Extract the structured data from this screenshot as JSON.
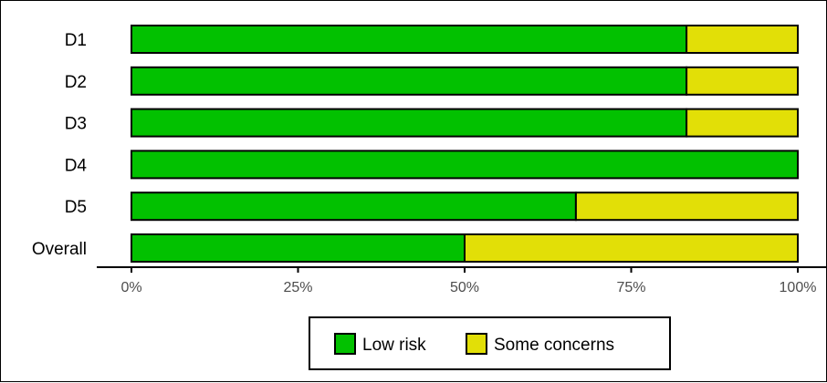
{
  "chart_data": {
    "type": "bar",
    "orientation": "horizontal",
    "stacked": true,
    "categories": [
      "D1",
      "D2",
      "D3",
      "D4",
      "D5",
      "Overall"
    ],
    "series": [
      {
        "name": "Low risk",
        "color": "#02C100",
        "values": [
          83.3,
          83.3,
          83.3,
          100,
          66.7,
          50
        ]
      },
      {
        "name": "Some concerns",
        "color": "#E2DF07",
        "values": [
          16.7,
          16.7,
          16.7,
          0,
          33.3,
          50
        ]
      }
    ],
    "xlim": [
      0,
      100
    ],
    "xticks": [
      0,
      25,
      50,
      75,
      100
    ],
    "xtick_labels": [
      "0%",
      "25%",
      "50%",
      "75%",
      "100%"
    ],
    "grid": false,
    "legend_position": "bottom"
  }
}
